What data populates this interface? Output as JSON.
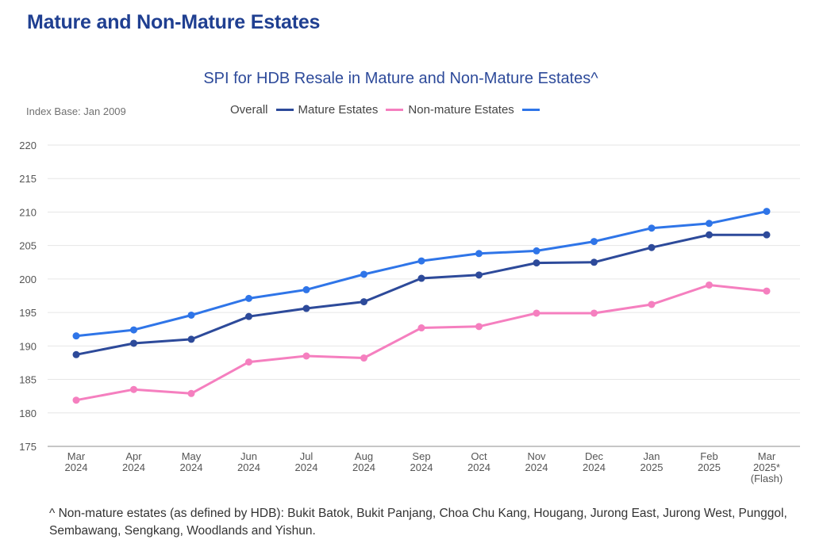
{
  "page_title": "Mature and Non-Mature Estates",
  "index_base": "Index Base: Jan 2009",
  "footnote": "^ Non-mature estates (as defined by HDB): Bukit Batok, Bukit Panjang, Choa Chu Kang, Hougang, Jurong East, Jurong West, Punggol, Sembawang, Sengkang, Woodlands and Yishun.",
  "chart_data": {
    "type": "line",
    "title": "SPI for HDB Resale in Mature and Non-Mature Estates^",
    "legend_position": "top",
    "grid": true,
    "categories": [
      [
        "Mar",
        "2024"
      ],
      [
        "Apr",
        "2024"
      ],
      [
        "May",
        "2024"
      ],
      [
        "Jun",
        "2024"
      ],
      [
        "Jul",
        "2024"
      ],
      [
        "Aug",
        "2024"
      ],
      [
        "Sep",
        "2024"
      ],
      [
        "Oct",
        "2024"
      ],
      [
        "Nov",
        "2024"
      ],
      [
        "Dec",
        "2024"
      ],
      [
        "Jan",
        "2025"
      ],
      [
        "Feb",
        "2025"
      ],
      [
        "Mar",
        "2025*",
        "(Flash)"
      ]
    ],
    "ylim": [
      175,
      220
    ],
    "yticks": [
      175,
      180,
      185,
      190,
      195,
      200,
      205,
      210,
      215,
      220
    ],
    "legend": [
      {
        "label": "Overall",
        "color": "#2d4a9a"
      },
      {
        "label": "Mature Estates",
        "color": "#f57fbf"
      },
      {
        "label": "Non-mature Estates",
        "color": "#2f75e8"
      }
    ],
    "series": [
      {
        "color": "#2d4a9a",
        "values": [
          188.7,
          190.4,
          191.0,
          194.4,
          195.6,
          196.6,
          200.1,
          200.6,
          202.4,
          202.5,
          204.7,
          206.6,
          206.6
        ]
      },
      {
        "color": "#f57fbf",
        "values": [
          181.9,
          183.5,
          182.9,
          187.6,
          188.5,
          188.2,
          192.7,
          192.9,
          194.9,
          194.9,
          196.2,
          199.1,
          198.2
        ]
      },
      {
        "color": "#2f75e8",
        "values": [
          191.5,
          192.4,
          194.6,
          197.1,
          198.4,
          200.7,
          202.7,
          203.8,
          204.2,
          205.6,
          207.6,
          208.3,
          210.1
        ]
      }
    ]
  }
}
